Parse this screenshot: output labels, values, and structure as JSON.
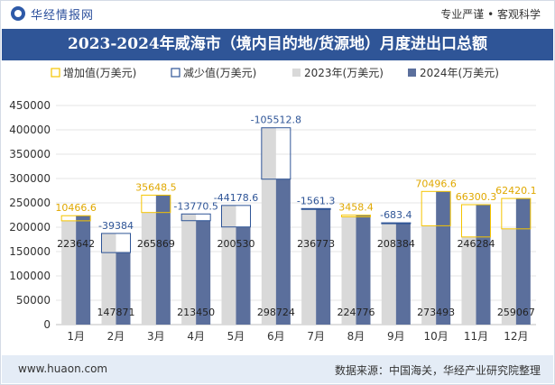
{
  "header": {
    "brand": "华经情报网",
    "slogan": "专业严谨 • 客观科学"
  },
  "footer": {
    "url": "www.huaon.com",
    "source": "数据来源：中国海关，华经产业研究院整理"
  },
  "colors": {
    "increase": "#f5c400",
    "decrease": "#2f5597",
    "y2023": "#d9d9d9",
    "y2024": "#5b6f9c"
  },
  "chart_data": {
    "type": "bar",
    "title": "2023-2024年威海市（境内目的地/货源地）月度进出口总额",
    "legend": [
      "增加值(万美元)",
      "减少值(万美元)",
      "2023年(万美元)",
      "2024年(万美元)"
    ],
    "legend_position": "top",
    "categories": [
      "1月",
      "2月",
      "3月",
      "4月",
      "5月",
      "6月",
      "7月",
      "8月",
      "9月",
      "10月",
      "11月",
      "12月"
    ],
    "series": [
      {
        "name": "2023年(万美元)",
        "values": [
          213175,
          187255,
          230220,
          227221,
          244709,
          404237,
          238334,
          221318,
          209067,
          202996,
          179984,
          196647
        ]
      },
      {
        "name": "2024年(万美元)",
        "values": [
          223642,
          147871,
          265869,
          213450,
          200530,
          298724,
          236773,
          224776,
          208384,
          273493,
          246284,
          259067
        ]
      }
    ],
    "change_labels": [
      "10466.6",
      "-39384",
      "35648.5",
      "-13770.5",
      "-44178.6",
      "-105512.8",
      "-1561.3",
      "3458.4",
      "-683.4",
      "70496.6",
      "66300.3",
      "62420.1"
    ],
    "value_labels_2024": [
      "223642",
      "147871",
      "265869",
      "213450",
      "200530",
      "298724",
      "236773",
      "224776",
      "208384",
      "273493",
      "246284",
      "259067"
    ],
    "yticks": [
      "0",
      "50000",
      "100000",
      "150000",
      "200000",
      "250000",
      "300000",
      "350000",
      "400000",
      "450000"
    ],
    "ylim": [
      0,
      450000
    ],
    "grid": true
  }
}
